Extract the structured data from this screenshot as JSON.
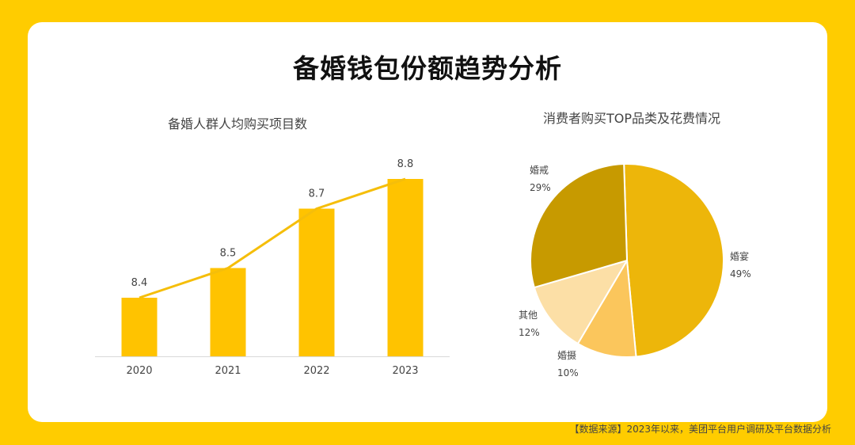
{
  "page": {
    "title": "备婚钱包份额趋势分析",
    "source": "【数据来源】2023年以来，美团平台用户调研及平台数据分析"
  },
  "colors": {
    "background": "#FFCC00",
    "card": "#FFFFFF",
    "bar": "#FFC300",
    "line": "#F5BE0A"
  },
  "chart_data": [
    {
      "type": "bar",
      "title": "备婚人群人均购买项目数",
      "categories": [
        "2020",
        "2021",
        "2022",
        "2023"
      ],
      "values": [
        8.4,
        8.5,
        8.7,
        8.8
      ],
      "overlay": "line",
      "value_labels": [
        "8.4",
        "8.5",
        "8.7",
        "8.8"
      ],
      "grid": false
    },
    {
      "type": "pie",
      "title": "消费者购买TOP品类及花费情况",
      "slices": [
        {
          "label": "婚宴",
          "value": 49,
          "display": "49%",
          "color": "#EDB60A"
        },
        {
          "label": "婚摄",
          "value": 10,
          "display": "10%",
          "color": "#FBC65C"
        },
        {
          "label": "其他",
          "value": 12,
          "display": "12%",
          "color": "#FCDFA6"
        },
        {
          "label": "婚戒",
          "value": 29,
          "display": "29%",
          "color": "#C79A00"
        }
      ]
    }
  ]
}
